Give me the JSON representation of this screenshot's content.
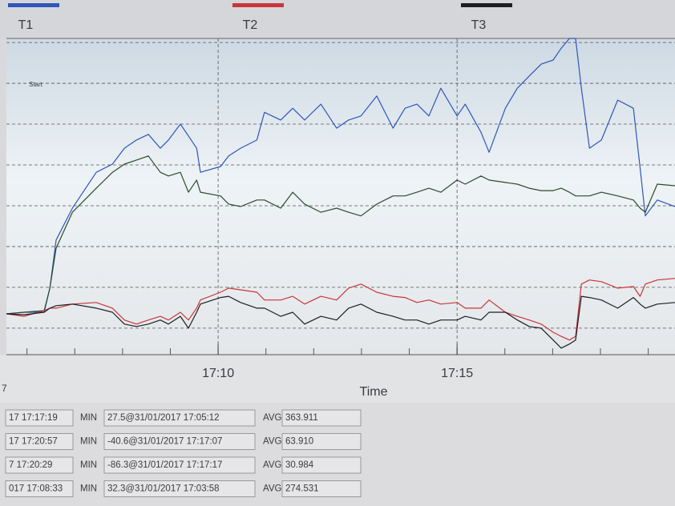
{
  "chart_data": {
    "type": "line",
    "x_label": "Time",
    "annotation": "Start",
    "xlim": [
      5.57,
      19.56
    ],
    "xticks": [
      {
        "value": 10,
        "label": "17:10"
      },
      {
        "value": 15,
        "label": "17:15"
      }
    ],
    "xminor": [
      6,
      7,
      8,
      9,
      10,
      11,
      12,
      13,
      14,
      15,
      16,
      17,
      18,
      19
    ],
    "ylim": [
      -0.65,
      7.1
    ],
    "ygrid": [
      0,
      1,
      2,
      3,
      4,
      5,
      6,
      7
    ],
    "grid": true,
    "x": [
      5.57,
      5.94,
      6.36,
      6.48,
      6.61,
      6.95,
      7.45,
      7.79,
      8.04,
      8.29,
      8.54,
      8.79,
      8.96,
      9.21,
      9.38,
      9.55,
      9.63,
      10.05,
      10.22,
      10.47,
      10.81,
      10.97,
      11.31,
      11.56,
      11.81,
      12.15,
      12.48,
      12.73,
      12.99,
      13.32,
      13.66,
      13.91,
      14.16,
      14.41,
      14.66,
      15.0,
      15.17,
      15.5,
      15.67,
      16.01,
      16.26,
      16.51,
      16.76,
      17.01,
      17.18,
      17.35,
      17.48,
      17.6,
      17.77,
      18.02,
      18.36,
      18.69,
      18.83,
      18.94,
      19.19,
      19.56
    ],
    "series": [
      {
        "name": "T1",
        "color": "#2f56b8",
        "values": [
          0.35,
          0.39,
          0.39,
          0.98,
          2.16,
          2.94,
          3.82,
          4.02,
          4.41,
          4.61,
          4.75,
          4.41,
          4.61,
          5.0,
          4.71,
          4.41,
          3.82,
          3.96,
          4.22,
          4.41,
          4.61,
          5.29,
          5.1,
          5.39,
          5.1,
          5.49,
          4.9,
          5.1,
          5.2,
          5.69,
          4.9,
          5.39,
          5.49,
          5.2,
          5.88,
          5.2,
          5.49,
          4.8,
          4.31,
          5.39,
          5.88,
          6.18,
          6.47,
          6.57,
          6.86,
          7.1,
          7.1,
          5.88,
          4.41,
          4.61,
          5.59,
          5.39,
          3.92,
          2.75,
          3.14,
          2.98
        ]
      },
      {
        "color": "#2d4a2d",
        "values": [
          0.35,
          0.39,
          0.43,
          0.98,
          1.96,
          2.84,
          3.43,
          3.82,
          4.02,
          4.12,
          4.22,
          3.82,
          3.73,
          3.82,
          3.33,
          3.63,
          3.33,
          3.24,
          3.04,
          2.98,
          3.14,
          3.14,
          2.94,
          3.33,
          3.04,
          2.84,
          2.94,
          2.84,
          2.75,
          3.04,
          3.24,
          3.24,
          3.33,
          3.43,
          3.33,
          3.63,
          3.53,
          3.73,
          3.63,
          3.57,
          3.53,
          3.43,
          3.37,
          3.37,
          3.43,
          3.33,
          3.24,
          3.24,
          3.24,
          3.33,
          3.24,
          3.14,
          2.94,
          2.84,
          3.53,
          3.49
        ]
      },
      {
        "name": "T2",
        "color": "#c8363a",
        "values": [
          0.35,
          0.29,
          0.43,
          0.49,
          0.49,
          0.59,
          0.63,
          0.49,
          0.2,
          0.1,
          0.2,
          0.29,
          0.2,
          0.39,
          0.2,
          0.49,
          0.69,
          0.88,
          0.98,
          0.94,
          0.88,
          0.69,
          0.69,
          0.78,
          0.59,
          0.78,
          0.69,
          0.98,
          1.08,
          0.88,
          0.78,
          0.75,
          0.63,
          0.69,
          0.59,
          0.63,
          0.49,
          0.49,
          0.69,
          0.39,
          0.29,
          0.2,
          0.1,
          -0.1,
          -0.2,
          -0.29,
          -0.2,
          1.08,
          1.18,
          1.14,
          0.98,
          1.02,
          0.78,
          1.08,
          1.18,
          1.22
        ]
      },
      {
        "name": "T3",
        "color": "#1e1e22",
        "values": [
          0.35,
          0.33,
          0.39,
          0.49,
          0.55,
          0.59,
          0.49,
          0.39,
          0.1,
          0.04,
          0.1,
          0.2,
          0.1,
          0.29,
          0.0,
          0.39,
          0.59,
          0.75,
          0.78,
          0.63,
          0.49,
          0.49,
          0.29,
          0.39,
          0.1,
          0.29,
          0.2,
          0.49,
          0.59,
          0.39,
          0.29,
          0.2,
          0.2,
          0.1,
          0.2,
          0.2,
          0.29,
          0.2,
          0.39,
          0.39,
          0.2,
          0.04,
          0.0,
          -0.29,
          -0.49,
          -0.39,
          -0.29,
          0.78,
          0.75,
          0.69,
          0.49,
          0.75,
          0.59,
          0.49,
          0.59,
          0.63
        ]
      }
    ]
  },
  "fragment": "7",
  "stats_table": {
    "rows": [
      [
        "17 17:17:19",
        "MIN",
        "27.5@31/01/2017 17:05:12",
        "AVG",
        "363.911"
      ],
      [
        "17 17:20:57",
        "MIN",
        "-40.6@31/01/2017 17:17:07",
        "AVG",
        "63.910"
      ],
      [
        "7 17:20:29",
        "MIN",
        "-86.3@31/01/2017 17:17:17",
        "AVG",
        "30.984"
      ],
      [
        "017 17:08:33",
        "MIN",
        "32.3@31/01/2017 17:03:58",
        "AVG",
        "274.531"
      ]
    ]
  }
}
